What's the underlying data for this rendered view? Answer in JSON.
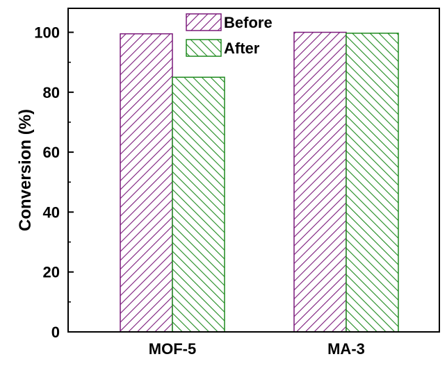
{
  "chart_data": {
    "type": "bar",
    "title": "",
    "xlabel": "",
    "ylabel": "Conversion (%)",
    "ylim": [
      0,
      108
    ],
    "yticks": [
      0,
      20,
      40,
      60,
      80,
      100
    ],
    "categories": [
      "MOF-5",
      "MA-3"
    ],
    "series": [
      {
        "name": "Before",
        "values": [
          99.5,
          100
        ],
        "color": "#7b1a7b",
        "hatch": "forward-diagonal"
      },
      {
        "name": "After",
        "values": [
          85,
          99.7
        ],
        "color": "#1f8a1f",
        "hatch": "back-diagonal"
      }
    ],
    "legend": "top-center",
    "grid": false
  }
}
